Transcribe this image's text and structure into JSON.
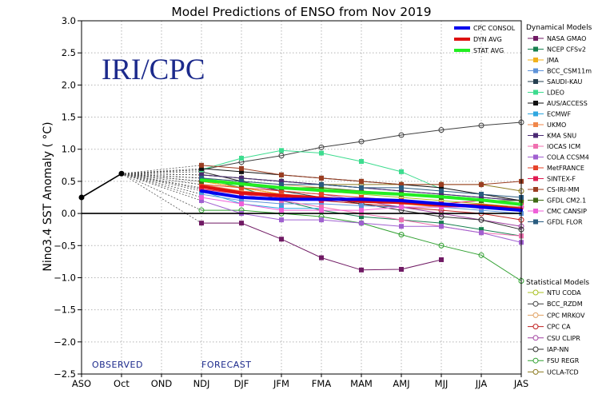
{
  "chart_data": {
    "type": "line",
    "title": "Model Predictions of ENSO from Nov 2019",
    "ylabel": "Nino3.4 SST Anomaly ( °C)",
    "xlabel": "",
    "ylim": [
      -2.5,
      3.0
    ],
    "yticks": [
      "−2.5",
      "−2.0",
      "−1.5",
      "−1.0",
      "−0.5",
      "0.0",
      "0.5",
      "1.0",
      "1.5",
      "2.0",
      "2.5",
      "3.0"
    ],
    "categories": [
      "ASO",
      "Oct",
      "OND",
      "NDJ",
      "DJF",
      "JFM",
      "FMA",
      "MAM",
      "AMJ",
      "MJJ",
      "JJA",
      "JAS"
    ],
    "grid": true,
    "watermark": "IRI/CPC",
    "observed_label": "OBSERVED",
    "forecast_label": "FORECAST",
    "observed": {
      "x": [
        "ASO",
        "Oct"
      ],
      "values": [
        0.25,
        0.62
      ]
    },
    "averages": [
      {
        "name": "CPC CONSOL",
        "color": "#0000ee",
        "values": [
          0.35,
          0.25,
          0.22,
          0.22,
          0.22,
          0.2,
          0.15,
          0.1,
          0.05
        ]
      },
      {
        "name": "DYN AVG",
        "color": "#dd1111",
        "values": [
          0.42,
          0.32,
          0.28,
          0.24,
          0.19,
          0.17,
          0.13,
          0.12,
          0.07
        ]
      },
      {
        "name": "STAT AVG",
        "color": "#22ee22",
        "values": [
          0.52,
          0.46,
          0.4,
          0.36,
          0.33,
          0.3,
          0.26,
          0.21,
          0.14
        ]
      }
    ],
    "legend_dynamical_title": "Dynamical Models",
    "dynamical": [
      {
        "name": "NASA GMAO",
        "color": "#701a64",
        "values": [
          -0.15,
          -0.15,
          -0.4,
          -0.69,
          -0.88,
          -0.87,
          -0.72
        ]
      },
      {
        "name": "NCEP CFSv2",
        "color": "#188050",
        "values": [
          0.55,
          0.4,
          0.2,
          0.05,
          -0.05,
          -0.1,
          -0.15,
          -0.25,
          -0.35
        ]
      },
      {
        "name": "JMA",
        "color": "#f2b21c",
        "values": [
          0.5,
          0.4,
          0.3,
          0.25,
          0.2,
          0.15,
          0.1
        ]
      },
      {
        "name": "BCC_CSM11m",
        "color": "#5e93d9",
        "values": [
          0.3,
          0.2,
          0.15,
          0.15,
          0.12,
          0.1,
          0.1,
          0.05,
          0.0
        ]
      },
      {
        "name": "SAUDI-KAU",
        "color": "#254050",
        "values": [
          0.6,
          0.55,
          0.5,
          0.45,
          0.4,
          0.35,
          0.3,
          0.25,
          0.2
        ]
      },
      {
        "name": "LDEO",
        "color": "#3ddc8f",
        "values": [
          0.68,
          0.86,
          0.98,
          0.94,
          0.81,
          0.65,
          0.38
        ]
      },
      {
        "name": "AUS/ACCESS",
        "color": "#111111",
        "values": [
          0.7,
          0.65,
          0.6,
          0.55,
          0.5,
          0.45,
          0.4,
          0.3,
          0.2
        ]
      },
      {
        "name": "ECMWF",
        "color": "#2fa7e0",
        "values": [
          0.35,
          0.15,
          0.08,
          0.08
        ]
      },
      {
        "name": "UKMO",
        "color": "#f0874a",
        "values": [
          0.45,
          0.35,
          0.3
        ]
      },
      {
        "name": "KMA SNU",
        "color": "#4b2a74",
        "values": [
          0.6,
          0.55,
          0.5,
          0.45,
          0.4,
          0.35,
          0.3,
          0.25,
          0.2
        ]
      },
      {
        "name": "IOCAS ICM",
        "color": "#f070b0",
        "values": [
          0.4,
          0.3,
          0.2,
          0.1,
          0.0,
          -0.1,
          -0.2,
          -0.3,
          -0.35
        ]
      },
      {
        "name": "COLA CCSM4",
        "color": "#a060d0",
        "values": [
          0.2,
          0.0,
          -0.1,
          -0.1,
          -0.15,
          -0.2,
          -0.2,
          -0.3,
          -0.45
        ]
      },
      {
        "name": "MetFRANCE",
        "color": "#e6432a",
        "values": [
          0.45,
          0.4,
          0.35,
          0.3,
          0.25,
          0.2,
          0.15
        ]
      },
      {
        "name": "SINTEX-F",
        "color": "#e01a50",
        "values": [
          0.38,
          0.3,
          0.25,
          0.2,
          0.2,
          0.18,
          0.15,
          0.2,
          0.15
        ]
      },
      {
        "name": "CS-IRI-MM",
        "color": "#9b3e22",
        "values": [
          0.75,
          0.7,
          0.6,
          0.55,
          0.5,
          0.45,
          0.45,
          0.45,
          0.5
        ]
      },
      {
        "name": "GFDL CM2.1",
        "color": "#3e6a14",
        "values": [
          0.5,
          0.45,
          0.4,
          0.4,
          0.35,
          0.3,
          0.25,
          0.2,
          0.2
        ]
      },
      {
        "name": "CMC CANSIP",
        "color": "#ef5fd8",
        "values": [
          0.25,
          0.15,
          0.05,
          0.05,
          0.05,
          0.1,
          0.1,
          0.1,
          0.1
        ]
      },
      {
        "name": "GFDL FLOR",
        "color": "#2a5c80",
        "values": [
          0.55,
          0.5,
          0.45,
          0.45,
          0.4,
          0.4,
          0.35,
          0.3,
          0.25
        ]
      }
    ],
    "legend_statistical_title": "Statistical Models",
    "statistical": [
      {
        "name": "NTU CODA",
        "color": "#a8c020",
        "values": [
          0.5,
          0.45,
          0.4,
          0.35,
          0.3,
          0.25,
          0.2,
          0.15,
          0.1
        ]
      },
      {
        "name": "BCC_RZDM",
        "color": "#404040",
        "values": [
          0.68,
          0.8,
          0.9,
          1.03,
          1.12,
          1.22,
          1.3,
          1.37,
          1.42
        ]
      },
      {
        "name": "CPC MRKOV",
        "color": "#e0a060",
        "values": [
          0.55,
          0.5,
          0.45,
          0.4,
          0.35,
          0.3,
          0.25,
          0.2,
          0.2
        ]
      },
      {
        "name": "CPC CA",
        "color": "#c02020",
        "values": [
          0.5,
          0.4,
          0.3,
          0.2,
          0.15,
          0.1,
          0.05,
          0.0,
          -0.1
        ]
      },
      {
        "name": "CSU CLIPR",
        "color": "#a040a0",
        "values": [
          0.55,
          0.45,
          0.35,
          0.3,
          0.2,
          0.1,
          0.0,
          -0.1,
          -0.2
        ]
      },
      {
        "name": "IAP-NN",
        "color": "#303030",
        "values": [
          0.65,
          0.5,
          0.35,
          0.25,
          0.15,
          0.05,
          -0.05,
          -0.1,
          -0.25
        ]
      },
      {
        "name": "FSU REGR",
        "color": "#30a030",
        "values": [
          0.05,
          0.05,
          0.0,
          -0.05,
          -0.15,
          -0.33,
          -0.5,
          -0.65,
          -1.05
        ]
      },
      {
        "name": "UCLA-TCD",
        "color": "#8c7a20",
        "values": [
          0.6,
          0.55,
          0.5,
          0.45,
          0.45,
          0.45,
          0.45,
          0.45,
          0.35
        ]
      }
    ]
  }
}
